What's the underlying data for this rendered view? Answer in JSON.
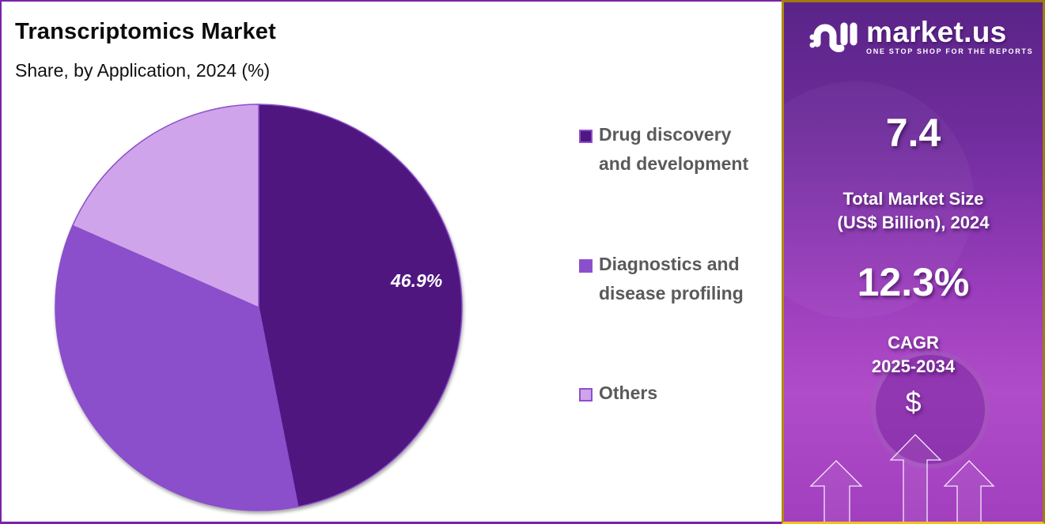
{
  "chart_data": {
    "type": "pie",
    "title": "Transcriptomics Market",
    "subtitle": "Share, by Application, 2024 (%)",
    "categories": [
      "Drug discovery and development",
      "Diagnostics and disease profiling",
      "Others"
    ],
    "values": [
      46.9,
      34.7,
      18.4
    ],
    "colors": [
      "#4f1780",
      "#8b4fcb",
      "#d0a4ea"
    ],
    "data_labels": [
      "46.9%",
      "",
      ""
    ],
    "start_angle": "12 o'clock, clockwise",
    "legend_position": "right"
  },
  "header": {
    "title": "Transcriptomics Market",
    "subtitle": "Share, by Application, 2024 (%)"
  },
  "pie": {
    "label": "46.9%"
  },
  "legend": {
    "items": [
      {
        "label": "Drug discovery and development",
        "color": "#4f1780"
      },
      {
        "label": "Diagnostics and disease profiling",
        "color": "#8b4fcb"
      },
      {
        "label": "Others",
        "color": "#d0a4ea"
      }
    ]
  },
  "brand": {
    "name": "market.us",
    "tagline": "ONE STOP SHOP FOR THE REPORTS"
  },
  "stats": {
    "market_size_value": "7.4",
    "market_size_label_line1": "Total Market Size",
    "market_size_label_line2": "(US$ Billion), 2024",
    "cagr_value": "12.3%",
    "cagr_label_line1": "CAGR",
    "cagr_label_line2": "2025-2034",
    "currency_symbol": "$"
  },
  "colors": {
    "left_border": "#7a22a8",
    "right_border": "#a07a10",
    "panel_purple": "#8a36b4"
  }
}
